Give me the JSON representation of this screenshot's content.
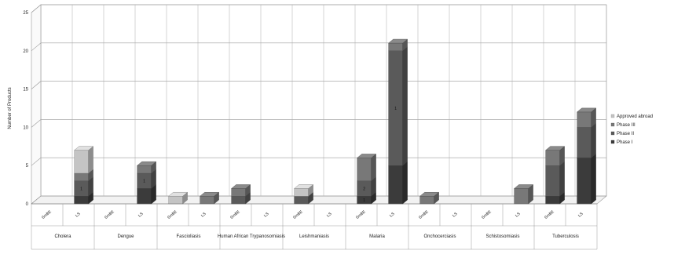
{
  "chart_data": {
    "type": "bar",
    "stacked": true,
    "style": "3d-stacked-columns",
    "title": "",
    "ylabel": "Number of Products",
    "ylim": [
      0,
      25
    ],
    "yticks": [
      0,
      5,
      10,
      15,
      20,
      25
    ],
    "grid": true,
    "legend_position": "right",
    "categories": [
      "Cholera",
      "Dengue",
      "Fascioliasis",
      "Human African Trypanosomiasis",
      "Leishmaniasis",
      "Malaria",
      "Onchocerciasis",
      "Schistosomiasis",
      "Tuberculosis"
    ],
    "subcategories": [
      "SmBE",
      "LS"
    ],
    "series": [
      {
        "name": "Phase I",
        "color": "#3b3b3b",
        "values": [
          [
            0,
            1
          ],
          [
            0,
            2
          ],
          [
            0,
            0
          ],
          [
            0,
            0
          ],
          [
            0,
            0
          ],
          [
            1,
            5
          ],
          [
            0,
            0
          ],
          [
            0,
            0
          ],
          [
            1,
            6
          ]
        ]
      },
      {
        "name": "Phase II",
        "color": "#5a5a5a",
        "values": [
          [
            0,
            2
          ],
          [
            0,
            2
          ],
          [
            0,
            0
          ],
          [
            1,
            0
          ],
          [
            1,
            0
          ],
          [
            2,
            15
          ],
          [
            0,
            0
          ],
          [
            0,
            0
          ],
          [
            4,
            4
          ]
        ]
      },
      {
        "name": "Phase III",
        "color": "#787878",
        "values": [
          [
            0,
            1
          ],
          [
            0,
            1
          ],
          [
            0,
            1
          ],
          [
            1,
            0
          ],
          [
            0,
            0
          ],
          [
            3,
            1
          ],
          [
            1,
            0
          ],
          [
            0,
            2
          ],
          [
            2,
            2
          ]
        ]
      },
      {
        "name": "Approved abroad",
        "color": "#c4c4c4",
        "values": [
          [
            0,
            3
          ],
          [
            0,
            0
          ],
          [
            1,
            0
          ],
          [
            0,
            0
          ],
          [
            1,
            0
          ],
          [
            0,
            0
          ],
          [
            0,
            0
          ],
          [
            0,
            0
          ],
          [
            0,
            0
          ]
        ]
      }
    ],
    "segment_labels": [
      [
        [
          "",
          ""
        ],
        [
          "",
          "1"
        ]
      ],
      [
        [
          "",
          ""
        ],
        [
          "",
          "1"
        ]
      ],
      [
        [
          "",
          ""
        ],
        [
          "",
          ""
        ]
      ],
      [
        [
          "",
          ""
        ],
        [
          "",
          ""
        ]
      ],
      [
        [
          "",
          ""
        ],
        [
          "",
          ""
        ]
      ],
      [
        [
          "1",
          "2"
        ],
        [
          "",
          "1"
        ]
      ],
      [
        [
          "",
          ""
        ],
        [
          "",
          ""
        ]
      ],
      [
        [
          "",
          ""
        ],
        [
          "",
          ""
        ]
      ],
      [
        [
          "",
          ""
        ],
        [
          "",
          ""
        ]
      ]
    ]
  }
}
